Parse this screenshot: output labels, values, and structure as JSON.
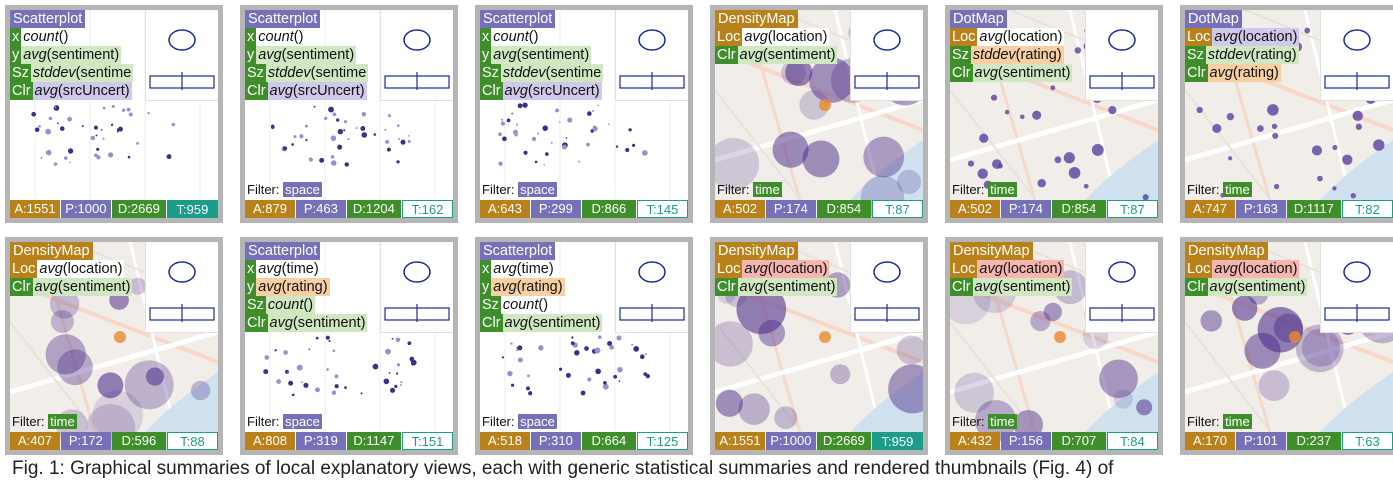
{
  "colors": {
    "title_scatter": "#7670b8",
    "title_density": "#b8811a",
    "title_dot": "#7670b8",
    "key_green": "#3e8f2a",
    "key_orange": "#b8811a",
    "key_purple": "#7670b8",
    "val_green": "#cfe8c2",
    "val_orange": "#f8cfa2",
    "val_purple": "#cfc9ec",
    "val_red": "#f4b6ae",
    "filter_space": "#7670b8",
    "filter_time": "#3e8f2a"
  },
  "tiles": [
    {
      "type": "scatter",
      "title": "Scatterplot",
      "enc": [
        [
          "x",
          "count()",
          null
        ],
        [
          "y",
          "avg(sentiment)",
          "green"
        ],
        [
          "Sz",
          "stddev(sentime",
          "green"
        ],
        [
          "Clr",
          "avg(srcUncert)",
          "purple"
        ]
      ],
      "filter": null,
      "stats": [
        "A:1551",
        "P:1000",
        "D:2669",
        "T:959"
      ],
      "tsolid": true
    },
    {
      "type": "scatter",
      "title": "Scatterplot",
      "enc": [
        [
          "x",
          "count()",
          null
        ],
        [
          "y",
          "avg(sentiment)",
          "green"
        ],
        [
          "Sz",
          "stddev(sentime",
          "green"
        ],
        [
          "Clr",
          "avg(srcUncert)",
          "purple"
        ]
      ],
      "filter": "space",
      "stats": [
        "A:879",
        "P:463",
        "D:1204",
        "T:162"
      ],
      "tsolid": false
    },
    {
      "type": "scatter",
      "title": "Scatterplot",
      "enc": [
        [
          "x",
          "count()",
          null
        ],
        [
          "y",
          "avg(sentiment)",
          "green"
        ],
        [
          "Sz",
          "stddev(sentime",
          "green"
        ],
        [
          "Clr",
          "avg(srcUncert)",
          "purple"
        ]
      ],
      "filter": "space",
      "stats": [
        "A:643",
        "P:299",
        "D:866",
        "T:145"
      ],
      "tsolid": false
    },
    {
      "type": "density",
      "title": "DensityMap",
      "enc": [
        [
          "Loc",
          "avg(location)",
          null
        ],
        [
          "Clr",
          "avg(sentiment)",
          "green"
        ]
      ],
      "filter": "time",
      "stats": [
        "A:502",
        "P:174",
        "D:854",
        "T:87"
      ],
      "tsolid": false
    },
    {
      "type": "dot",
      "title": "DotMap",
      "enc": [
        [
          "Loc",
          "avg(location)",
          null
        ],
        [
          "Sz",
          "stddev(rating)",
          "orange"
        ],
        [
          "Clr",
          "avg(sentiment)",
          "green"
        ]
      ],
      "filter": "time",
      "stats": [
        "A:502",
        "P:174",
        "D:854",
        "T:87"
      ],
      "tsolid": false
    },
    {
      "type": "dot",
      "title": "DotMap",
      "enc": [
        [
          "Loc",
          "avg(location)",
          "purple"
        ],
        [
          "Sz",
          "stddev(rating)",
          "green"
        ],
        [
          "Clr",
          "avg(rating)",
          "orange"
        ]
      ],
      "filter": "time",
      "stats": [
        "A:747",
        "P:163",
        "D:1117",
        "T:82"
      ],
      "tsolid": false
    },
    {
      "type": "density",
      "title": "DensityMap",
      "enc": [
        [
          "Loc",
          "avg(location)",
          null
        ],
        [
          "Clr",
          "avg(sentiment)",
          "green"
        ]
      ],
      "filter": "time",
      "stats": [
        "A:407",
        "P:172",
        "D:596",
        "T:88"
      ],
      "tsolid": false
    },
    {
      "type": "scatter",
      "title": "Scatterplot",
      "enc": [
        [
          "x",
          "avg(time)",
          null
        ],
        [
          "y",
          "avg(rating)",
          "orange"
        ],
        [
          "Sz",
          "count()",
          "green"
        ],
        [
          "Clr",
          "avg(sentiment)",
          "green"
        ]
      ],
      "filter": "space",
      "stats": [
        "A:808",
        "P:319",
        "D:1147",
        "T:151"
      ],
      "tsolid": false
    },
    {
      "type": "scatter",
      "title": "Scatterplot",
      "enc": [
        [
          "x",
          "avg(time)",
          null
        ],
        [
          "y",
          "avg(rating)",
          "orange"
        ],
        [
          "Sz",
          "count()",
          null
        ],
        [
          "Clr",
          "avg(sentiment)",
          "green"
        ]
      ],
      "filter": "space",
      "stats": [
        "A:518",
        "P:310",
        "D:664",
        "T:125"
      ],
      "tsolid": false
    },
    {
      "type": "density",
      "title": "DensityMap",
      "enc": [
        [
          "Loc",
          "avg(location)",
          "red"
        ],
        [
          "Clr",
          "avg(sentiment)",
          "green"
        ]
      ],
      "filter": null,
      "stats": [
        "A:1551",
        "P:1000",
        "D:2669",
        "T:959"
      ],
      "tsolid": true
    },
    {
      "type": "density",
      "title": "DensityMap",
      "enc": [
        [
          "Loc",
          "avg(location)",
          "red"
        ],
        [
          "Clr",
          "avg(sentiment)",
          "green"
        ]
      ],
      "filter": "time",
      "stats": [
        "A:432",
        "P:156",
        "D:707",
        "T:84"
      ],
      "tsolid": false
    },
    {
      "type": "density",
      "title": "DensityMap",
      "enc": [
        [
          "Loc",
          "avg(location)",
          "red"
        ],
        [
          "Clr",
          "avg(sentiment)",
          "green"
        ]
      ],
      "filter": "time",
      "stats": [
        "A:170",
        "P:101",
        "D:237",
        "T:63"
      ],
      "tsolid": false
    }
  ],
  "filter_label": "Filter:",
  "caption": "Fig. 1: Graphical summaries of local explanatory views, each with generic statistical summaries and rendered thumbnails (Fig. 4) of"
}
